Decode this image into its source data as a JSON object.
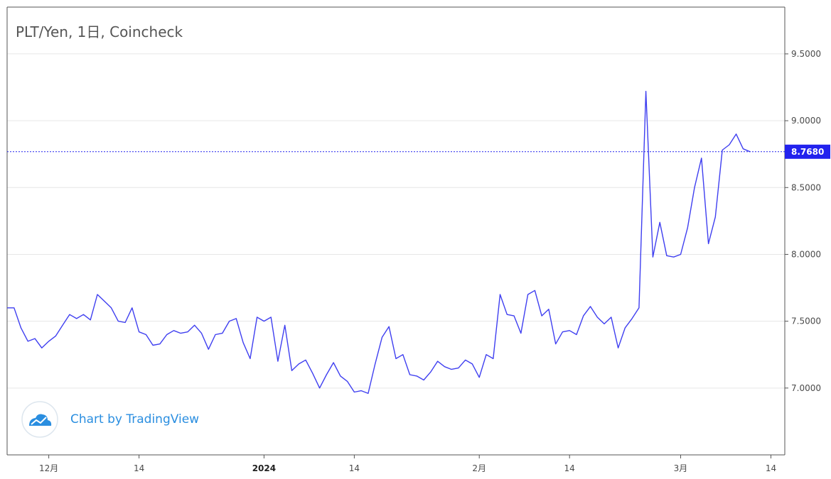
{
  "chart_data": {
    "type": "line",
    "title": "PLT/Yen, 1日, Coincheck",
    "watermark": "Chart by TradingView",
    "last_price_label": "8.7680",
    "last_price": 8.768,
    "ylim": [
      6.5,
      9.85
    ],
    "y_ticks": [
      7.0,
      7.5,
      8.0,
      8.5,
      9.0,
      9.5
    ],
    "y_tick_labels": [
      "7.0000",
      "7.5000",
      "8.0000",
      "8.5000",
      "9.0000",
      "9.5000"
    ],
    "x_ticks": [
      {
        "date": "2023-12-01",
        "label": "12月",
        "bold": false
      },
      {
        "date": "2023-12-14",
        "label": "14",
        "bold": false
      },
      {
        "date": "2024-01-01",
        "label": "2024",
        "bold": true
      },
      {
        "date": "2024-01-14",
        "label": "14",
        "bold": false
      },
      {
        "date": "2024-02-01",
        "label": "2月",
        "bold": false
      },
      {
        "date": "2024-02-14",
        "label": "14",
        "bold": false
      },
      {
        "date": "2024-03-01",
        "label": "3月",
        "bold": false
      },
      {
        "date": "2024-03-14",
        "label": "14",
        "bold": false
      }
    ],
    "xlim": [
      "2023-11-25",
      "2024-03-16"
    ],
    "series": [
      {
        "color": "#3f3ff0",
        "points": [
          [
            "2023-11-25",
            7.6
          ],
          [
            "2023-11-26",
            7.6
          ],
          [
            "2023-11-27",
            7.45
          ],
          [
            "2023-11-28",
            7.35
          ],
          [
            "2023-11-29",
            7.37
          ],
          [
            "2023-11-30",
            7.3
          ],
          [
            "2023-12-01",
            7.35
          ],
          [
            "2023-12-02",
            7.39
          ],
          [
            "2023-12-03",
            7.47
          ],
          [
            "2023-12-04",
            7.55
          ],
          [
            "2023-12-05",
            7.52
          ],
          [
            "2023-12-06",
            7.55
          ],
          [
            "2023-12-07",
            7.51
          ],
          [
            "2023-12-08",
            7.7
          ],
          [
            "2023-12-09",
            7.65
          ],
          [
            "2023-12-10",
            7.6
          ],
          [
            "2023-12-11",
            7.5
          ],
          [
            "2023-12-12",
            7.49
          ],
          [
            "2023-12-13",
            7.6
          ],
          [
            "2023-12-14",
            7.42
          ],
          [
            "2023-12-15",
            7.4
          ],
          [
            "2023-12-16",
            7.32
          ],
          [
            "2023-12-17",
            7.33
          ],
          [
            "2023-12-18",
            7.4
          ],
          [
            "2023-12-19",
            7.43
          ],
          [
            "2023-12-20",
            7.41
          ],
          [
            "2023-12-21",
            7.42
          ],
          [
            "2023-12-22",
            7.47
          ],
          [
            "2023-12-23",
            7.41
          ],
          [
            "2023-12-24",
            7.29
          ],
          [
            "2023-12-25",
            7.4
          ],
          [
            "2023-12-26",
            7.41
          ],
          [
            "2023-12-27",
            7.5
          ],
          [
            "2023-12-28",
            7.52
          ],
          [
            "2023-12-29",
            7.34
          ],
          [
            "2023-12-30",
            7.22
          ],
          [
            "2023-12-31",
            7.53
          ],
          [
            "2024-01-01",
            7.5
          ],
          [
            "2024-01-02",
            7.53
          ],
          [
            "2024-01-03",
            7.2
          ],
          [
            "2024-01-04",
            7.47
          ],
          [
            "2024-01-05",
            7.13
          ],
          [
            "2024-01-06",
            7.18
          ],
          [
            "2024-01-07",
            7.21
          ],
          [
            "2024-01-08",
            7.11
          ],
          [
            "2024-01-09",
            7.0
          ],
          [
            "2024-01-10",
            7.1
          ],
          [
            "2024-01-11",
            7.19
          ],
          [
            "2024-01-12",
            7.09
          ],
          [
            "2024-01-13",
            7.05
          ],
          [
            "2024-01-14",
            6.97
          ],
          [
            "2024-01-15",
            6.98
          ],
          [
            "2024-01-16",
            6.96
          ],
          [
            "2024-01-17",
            7.18
          ],
          [
            "2024-01-18",
            7.38
          ],
          [
            "2024-01-19",
            7.46
          ],
          [
            "2024-01-20",
            7.22
          ],
          [
            "2024-01-21",
            7.25
          ],
          [
            "2024-01-22",
            7.1
          ],
          [
            "2024-01-23",
            7.09
          ],
          [
            "2024-01-24",
            7.06
          ],
          [
            "2024-01-25",
            7.12
          ],
          [
            "2024-01-26",
            7.2
          ],
          [
            "2024-01-27",
            7.16
          ],
          [
            "2024-01-28",
            7.14
          ],
          [
            "2024-01-29",
            7.15
          ],
          [
            "2024-01-30",
            7.21
          ],
          [
            "2024-01-31",
            7.18
          ],
          [
            "2024-02-01",
            7.08
          ],
          [
            "2024-02-02",
            7.25
          ],
          [
            "2024-02-03",
            7.22
          ],
          [
            "2024-02-04",
            7.7
          ],
          [
            "2024-02-05",
            7.55
          ],
          [
            "2024-02-06",
            7.54
          ],
          [
            "2024-02-07",
            7.41
          ],
          [
            "2024-02-08",
            7.7
          ],
          [
            "2024-02-09",
            7.73
          ],
          [
            "2024-02-10",
            7.54
          ],
          [
            "2024-02-11",
            7.59
          ],
          [
            "2024-02-12",
            7.33
          ],
          [
            "2024-02-13",
            7.42
          ],
          [
            "2024-02-14",
            7.43
          ],
          [
            "2024-02-15",
            7.4
          ],
          [
            "2024-02-16",
            7.54
          ],
          [
            "2024-02-17",
            7.61
          ],
          [
            "2024-02-18",
            7.53
          ],
          [
            "2024-02-19",
            7.48
          ],
          [
            "2024-02-20",
            7.53
          ],
          [
            "2024-02-21",
            7.3
          ],
          [
            "2024-02-22",
            7.45
          ],
          [
            "2024-02-23",
            7.52
          ],
          [
            "2024-02-24",
            7.6
          ],
          [
            "2024-02-25",
            9.22
          ],
          [
            "2024-02-26",
            7.98
          ],
          [
            "2024-02-27",
            8.24
          ],
          [
            "2024-02-28",
            7.99
          ],
          [
            "2024-02-29",
            7.98
          ],
          [
            "2024-03-01",
            8.0
          ],
          [
            "2024-03-02",
            8.2
          ],
          [
            "2024-03-03",
            8.5
          ],
          [
            "2024-03-04",
            8.72
          ],
          [
            "2024-03-05",
            8.08
          ],
          [
            "2024-03-06",
            8.28
          ],
          [
            "2024-03-07",
            8.78
          ],
          [
            "2024-03-08",
            8.82
          ],
          [
            "2024-03-09",
            8.9
          ],
          [
            "2024-03-10",
            8.79
          ],
          [
            "2024-03-11",
            8.768
          ]
        ]
      }
    ],
    "grid": true,
    "legend": "none"
  }
}
